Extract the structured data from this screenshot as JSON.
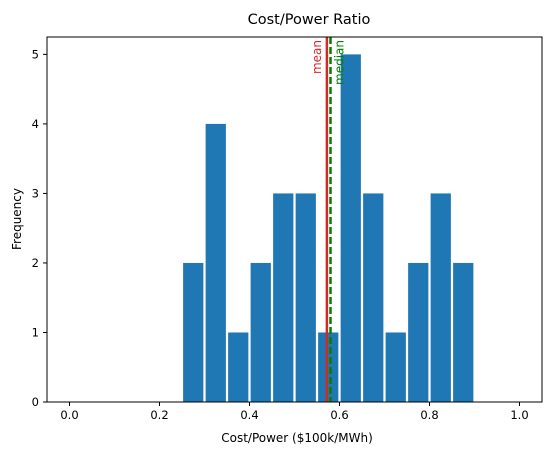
{
  "chart_data": {
    "type": "bar",
    "title": "Cost/Power Ratio",
    "xlabel": "Cost/Power ($100k/MWh)",
    "ylabel": "Frequency",
    "xlim": [
      -0.05,
      1.05
    ],
    "ylim": [
      0,
      5.25
    ],
    "xticks": [
      0.0,
      0.2,
      0.4,
      0.6,
      0.8,
      1.0
    ],
    "xtick_labels": [
      "0.0",
      "0.2",
      "0.4",
      "0.6",
      "0.8",
      "1.0"
    ],
    "yticks": [
      0,
      1,
      2,
      3,
      4,
      5
    ],
    "ytick_labels": [
      "0",
      "1",
      "2",
      "3",
      "4",
      "5"
    ],
    "bins": [
      {
        "start": 0.25,
        "end": 0.3,
        "count": 2
      },
      {
        "start": 0.3,
        "end": 0.35,
        "count": 4
      },
      {
        "start": 0.35,
        "end": 0.4,
        "count": 1
      },
      {
        "start": 0.4,
        "end": 0.45,
        "count": 2
      },
      {
        "start": 0.45,
        "end": 0.5,
        "count": 3
      },
      {
        "start": 0.5,
        "end": 0.55,
        "count": 3
      },
      {
        "start": 0.55,
        "end": 0.6,
        "count": 1
      },
      {
        "start": 0.6,
        "end": 0.65,
        "count": 5
      },
      {
        "start": 0.65,
        "end": 0.7,
        "count": 3
      },
      {
        "start": 0.7,
        "end": 0.75,
        "count": 1
      },
      {
        "start": 0.75,
        "end": 0.8,
        "count": 2
      },
      {
        "start": 0.8,
        "end": 0.85,
        "count": 3
      },
      {
        "start": 0.85,
        "end": 0.9,
        "count": 2
      }
    ],
    "bar_color": "#1f77b4",
    "bar_rwidth": 0.9,
    "vlines": [
      {
        "label": "mean",
        "x": 0.572,
        "color": "#d62728",
        "style": "solid"
      },
      {
        "label": "median",
        "x": 0.58,
        "color": "#008000",
        "style": "dashed"
      }
    ],
    "grid": false
  }
}
